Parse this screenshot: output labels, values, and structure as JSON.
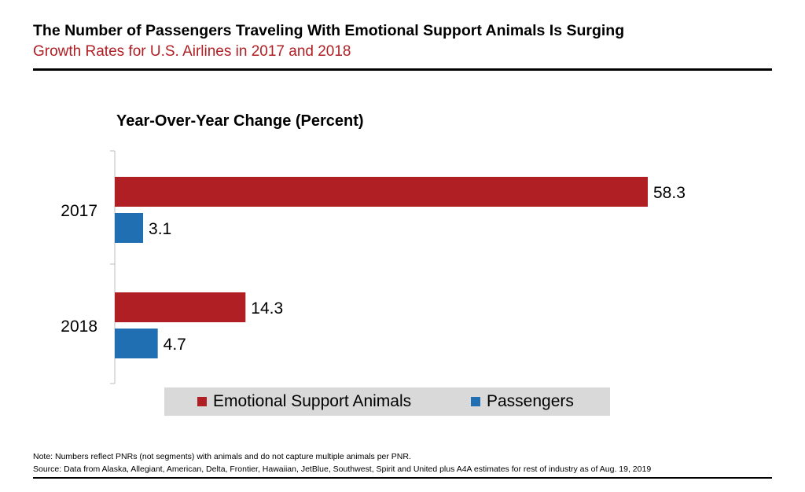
{
  "header": {
    "title": "The Number of Passengers Traveling With Emotional Support Animals Is Surging",
    "subtitle": "Growth Rates for U.S. Airlines in 2017 and 2018"
  },
  "chart_data": {
    "type": "bar",
    "orientation": "horizontal",
    "title": "Year-Over-Year Change (Percent)",
    "categories": [
      "2017",
      "2018"
    ],
    "series": [
      {
        "name": "Emotional Support Animals",
        "values": [
          58.3,
          14.3
        ],
        "color": "#b01f24"
      },
      {
        "name": "Passengers",
        "values": [
          3.1,
          4.7
        ],
        "color": "#1f6fb2"
      }
    ],
    "xlim": [
      0,
      60
    ],
    "grid": false,
    "legend_position": "bottom"
  },
  "footer": {
    "note": "Note: Numbers reflect PNRs (not segments) with animals and do not capture multiple animals per PNR.",
    "source": "Source: Data from Alaska, Allegiant, American, Delta, Frontier, Hawaiian, JetBlue, Southwest, Spirit and United plus A4A estimates for rest of industry as of Aug. 19, 2019"
  }
}
